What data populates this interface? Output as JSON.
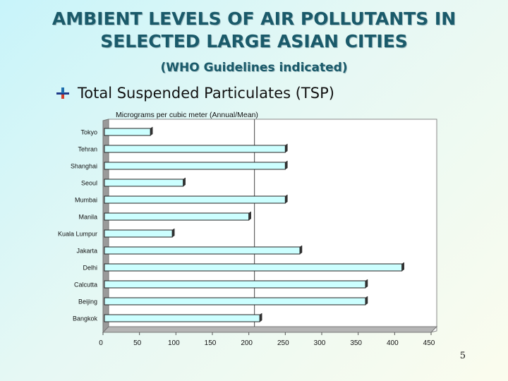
{
  "slide": {
    "title_line1": "AMBIENT LEVELS OF AIR POLLUTANTS IN",
    "title_line2": "SELECTED LARGE ASIAN CITIES",
    "subtitle": "(WHO Guidelines indicated)",
    "bullet": "Total Suspended Particulates (TSP)",
    "page_number": "5"
  },
  "chart_data": {
    "type": "bar",
    "orientation": "horizontal",
    "caption": "Micrograms per cubic meter (Annual/Mean)",
    "categories": [
      "Tokyo",
      "Tehran",
      "Shanghai",
      "Seoul",
      "Mumbai",
      "Manila",
      "Kuala Lumpur",
      "Jakarta",
      "Delhi",
      "Calcutta",
      "Beijing",
      "Bangkok"
    ],
    "values": [
      65,
      250,
      250,
      110,
      250,
      200,
      95,
      270,
      410,
      360,
      360,
      215
    ],
    "xlim": [
      0,
      450
    ],
    "xticks": [
      0,
      50,
      100,
      150,
      200,
      250,
      300,
      350,
      400,
      450
    ],
    "reference_line": 200,
    "grid": false,
    "legend": "none",
    "bar_color": "#ccffff",
    "bar_edge_color": "#222222"
  }
}
